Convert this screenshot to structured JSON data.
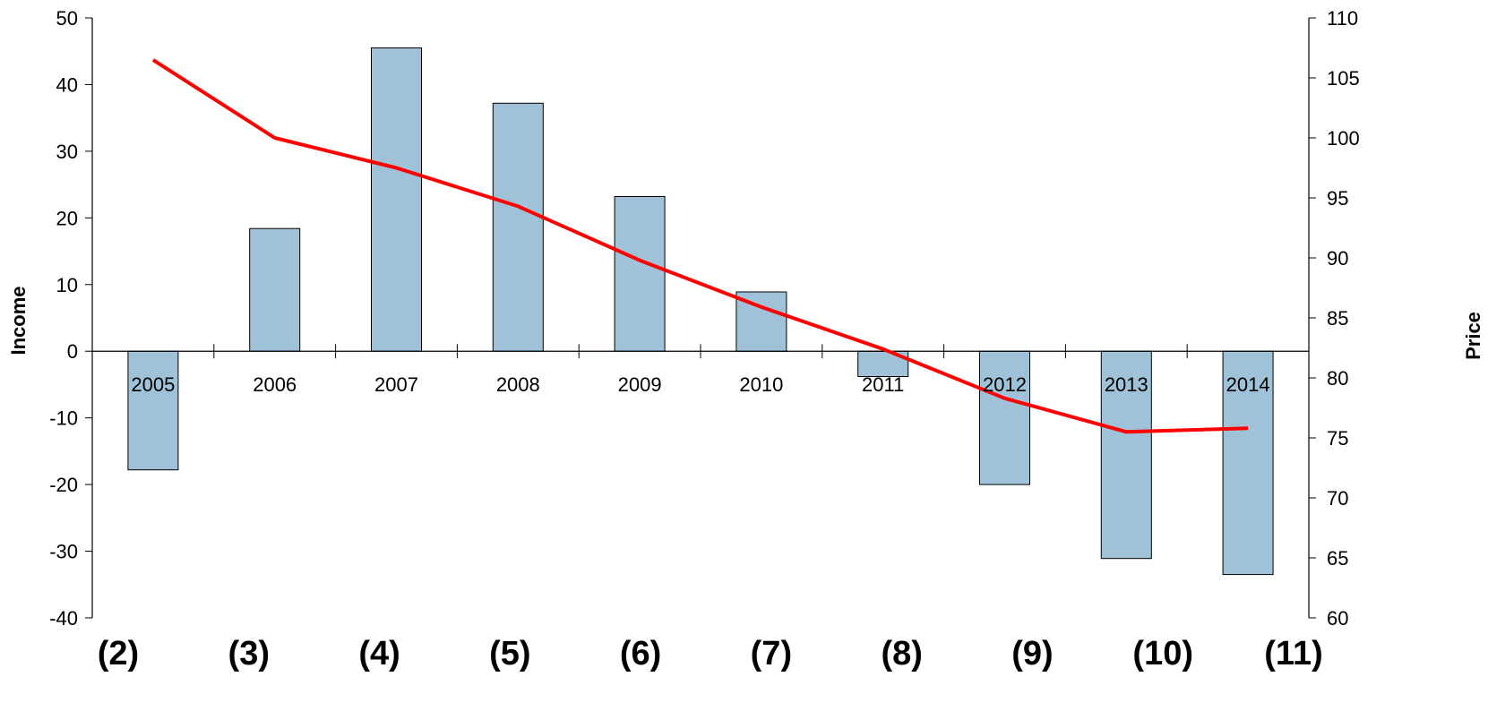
{
  "chart_data": {
    "type": "bar",
    "categories": [
      "2005",
      "2006",
      "2007",
      "2008",
      "2009",
      "2010",
      "2011",
      "2012",
      "2013",
      "2014"
    ],
    "series": [
      {
        "name": "",
        "type": "bar",
        "axis": "left",
        "values": [
          -17.8,
          18.4,
          45.5,
          37.2,
          23.2,
          8.9,
          -3.8,
          -20.0,
          -31.1,
          -33.5
        ],
        "color": "#9fc2d9"
      },
      {
        "name": "",
        "type": "line",
        "axis": "right",
        "values": [
          106.5,
          100.0,
          97.5,
          94.3,
          89.8,
          85.9,
          82.4,
          78.3,
          75.5,
          75.8
        ],
        "color": "#ff0000"
      }
    ],
    "ylabel": "Income",
    "y2label": "Price",
    "ylim": [
      -40,
      50
    ],
    "y2lim": [
      60,
      110
    ],
    "yticks": [
      "50",
      "40",
      "30",
      "20",
      "10",
      "0",
      "-10",
      "-20",
      "-30",
      "-40"
    ],
    "y2ticks": [
      "110",
      "105",
      "100",
      "95",
      "90",
      "85",
      "80",
      "75",
      "70",
      "65",
      "60"
    ],
    "bottom_labels": [
      "(2)",
      "(3)",
      "(4)",
      "(5)",
      "(6)",
      "(7)",
      "(8)",
      "(9)",
      "(10)",
      "(11)"
    ],
    "grid": false,
    "legend": "none"
  }
}
